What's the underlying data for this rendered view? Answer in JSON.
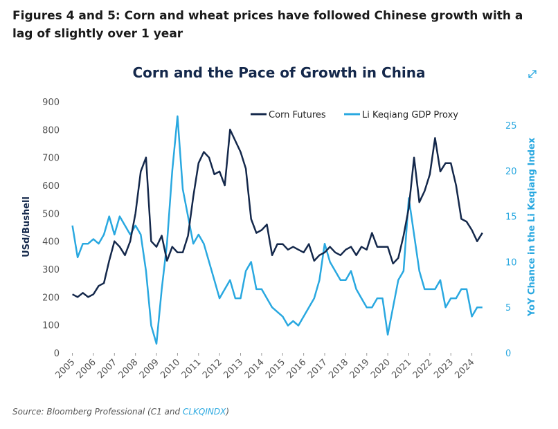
{
  "header": {
    "title": "Figures 4 and 5: Corn and wheat prices have followed Chinese growth with a lag of slightly over 1 year"
  },
  "chart_data": {
    "type": "line",
    "title": "Corn and the Pace of Growth in China",
    "ylabel": "USd/Bushell",
    "y2label": "YoY Chance in the Li Keqiang Index",
    "x": [
      2005,
      2005.25,
      2005.5,
      2005.75,
      2006,
      2006.25,
      2006.5,
      2006.75,
      2007,
      2007.25,
      2007.5,
      2007.75,
      2008,
      2008.25,
      2008.5,
      2008.75,
      2009,
      2009.25,
      2009.5,
      2009.75,
      2010,
      2010.25,
      2010.5,
      2010.75,
      2011,
      2011.25,
      2011.5,
      2011.75,
      2012,
      2012.25,
      2012.5,
      2012.75,
      2013,
      2013.25,
      2013.5,
      2013.75,
      2014,
      2014.25,
      2014.5,
      2014.75,
      2015,
      2015.25,
      2015.5,
      2015.75,
      2016,
      2016.25,
      2016.5,
      2016.75,
      2017,
      2017.25,
      2017.5,
      2017.75,
      2018,
      2018.25,
      2018.5,
      2018.75,
      2019,
      2019.25,
      2019.5,
      2019.75,
      2020,
      2020.25,
      2020.5,
      2020.75,
      2021,
      2021.25,
      2021.5,
      2021.75,
      2022,
      2022.25,
      2022.5,
      2022.75,
      2023,
      2023.25,
      2023.5,
      2023.75,
      2024,
      2024.25,
      2024.5
    ],
    "xlim": [
      2004.85,
      2025.1
    ],
    "xticks": [
      2005,
      2006,
      2007,
      2008,
      2009,
      2010,
      2011,
      2012,
      2013,
      2014,
      2015,
      2016,
      2017,
      2018,
      2019,
      2020,
      2021,
      2022,
      2023,
      2024
    ],
    "ylim": [
      0,
      900
    ],
    "yticks": [
      0,
      100,
      200,
      300,
      400,
      500,
      600,
      700,
      800,
      900
    ],
    "y2lim": [
      0,
      27.6
    ],
    "y2ticks": [
      0,
      5,
      10,
      15,
      20,
      25
    ],
    "series": [
      {
        "name": "Corn Futures",
        "color": "#14284b",
        "axis": "y",
        "values": [
          210,
          200,
          215,
          200,
          210,
          240,
          250,
          330,
          400,
          380,
          350,
          400,
          500,
          650,
          700,
          400,
          380,
          420,
          330,
          380,
          360,
          360,
          420,
          560,
          680,
          720,
          700,
          640,
          650,
          600,
          800,
          760,
          720,
          660,
          480,
          430,
          440,
          460,
          350,
          390,
          390,
          370,
          380,
          370,
          360,
          390,
          330,
          350,
          360,
          380,
          360,
          350,
          370,
          380,
          350,
          380,
          370,
          430,
          380,
          380,
          380,
          320,
          340,
          420,
          520,
          700,
          540,
          580,
          640,
          770,
          650,
          680,
          680,
          600,
          480,
          470,
          440,
          400,
          430
        ]
      },
      {
        "name": "Li Keqiang GDP Proxy",
        "color": "#29a8e0",
        "axis": "y2",
        "values": [
          14,
          10.5,
          12,
          12,
          12.5,
          12,
          13,
          15,
          13,
          15,
          14,
          13,
          14,
          13,
          9,
          3,
          1,
          7,
          12,
          20,
          26,
          18,
          15,
          12,
          13,
          12,
          10,
          8,
          6,
          7,
          8,
          6,
          6,
          9,
          10,
          7,
          7,
          6,
          5,
          4.5,
          4,
          3,
          3.5,
          3,
          4,
          5,
          6,
          8,
          12,
          10,
          9,
          8,
          8,
          9,
          7,
          6,
          5,
          5,
          6,
          6,
          2,
          5,
          8,
          9,
          17,
          13,
          9,
          7,
          7,
          7,
          8,
          5,
          6,
          6,
          7,
          7,
          4,
          5,
          5
        ]
      }
    ]
  },
  "source": {
    "prefix": "Source: Bloomberg Professional (C1 and ",
    "link": "CLKQINDX",
    "suffix": ")"
  }
}
